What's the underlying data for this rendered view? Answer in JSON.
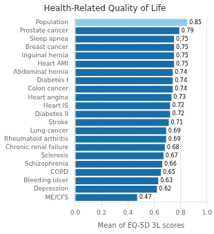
{
  "chart_data": {
    "type": "bar",
    "orientation": "horizontal",
    "title": "Health-Related Quality of Life",
    "xlabel": "Mean of EQ-5D 3L scores",
    "categories": [
      "ME/CFS",
      "Depression",
      "Bleeding ulcer",
      "COPD",
      "Schizophrenia",
      "Sclerosis",
      "Chronic renal failure",
      "Rheumatoid arthritis",
      "Lung cancer",
      "Stroke",
      "Diabetes II",
      "Heart IS",
      "Heart angina",
      "Colon cancer",
      "Diabetes I",
      "Abdominal hernia",
      "Heart AMI",
      "Inguinal hernia",
      "Breast cancer",
      "Sleep apnea",
      "Prostate cancer",
      "Population"
    ],
    "values": [
      0.47,
      0.62,
      0.63,
      0.65,
      0.66,
      0.67,
      0.68,
      0.69,
      0.69,
      0.71,
      0.72,
      0.72,
      0.73,
      0.74,
      0.74,
      0.74,
      0.75,
      0.75,
      0.75,
      0.75,
      0.79,
      0.85
    ],
    "colors": [
      "#1a6ea8",
      "#1a6ea8",
      "#1a6ea8",
      "#1a6ea8",
      "#1a6ea8",
      "#1a6ea8",
      "#1a6ea8",
      "#1a6ea8",
      "#1a6ea8",
      "#1a6ea8",
      "#1a6ea8",
      "#1a6ea8",
      "#1a6ea8",
      "#1a6ea8",
      "#1a6ea8",
      "#1a6ea8",
      "#1a6ea8",
      "#1a6ea8",
      "#1a6ea8",
      "#1a6ea8",
      "#1a6ea8",
      "#8ecae6"
    ],
    "xlim": [
      0.0,
      1.0
    ],
    "xticks": [
      {
        "value": 0,
        "label": "0.0"
      },
      0.2,
      0.4,
      0.6,
      0.8,
      {
        "value": 1,
        "label": "1.0"
      }
    ],
    "grid": true,
    "data_labels": true
  }
}
